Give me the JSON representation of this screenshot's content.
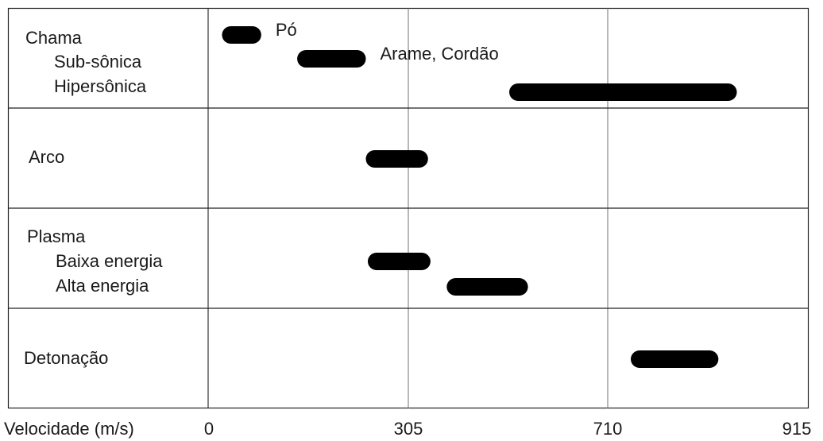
{
  "chart_data": {
    "type": "range-bar",
    "xlabel": "Velocidade (m/s)",
    "x_ticks": [
      0,
      305,
      710,
      915
    ],
    "xlim": [
      0,
      915
    ],
    "grid": true,
    "groups": [
      {
        "name": "Chama",
        "rows": [
          {
            "label": "Sub-sônica",
            "series": [
              {
                "name": "Pó",
                "range": [
                  20,
                  80
                ]
              },
              {
                "name": "Arame, Cordão",
                "range": [
                  135,
                  240
                ]
              }
            ]
          },
          {
            "label": "Hipersônica",
            "series": [
              {
                "range": [
                  510,
                  850
                ]
              }
            ]
          }
        ]
      },
      {
        "name": "Arco",
        "rows": [
          {
            "label": "",
            "series": [
              {
                "range": [
                  240,
                  345
                ]
              }
            ]
          }
        ]
      },
      {
        "name": "Plasma",
        "rows": [
          {
            "label": "Baixa energia",
            "series": [
              {
                "range": [
                  243,
                  350
                ]
              }
            ]
          },
          {
            "label": "Alta energia",
            "series": [
              {
                "range": [
                  383,
                  548
                ]
              }
            ]
          }
        ]
      },
      {
        "name": "Detonação",
        "rows": [
          {
            "label": "",
            "series": [
              {
                "range": [
                  735,
                  830
                ]
              }
            ]
          }
        ]
      }
    ]
  }
}
